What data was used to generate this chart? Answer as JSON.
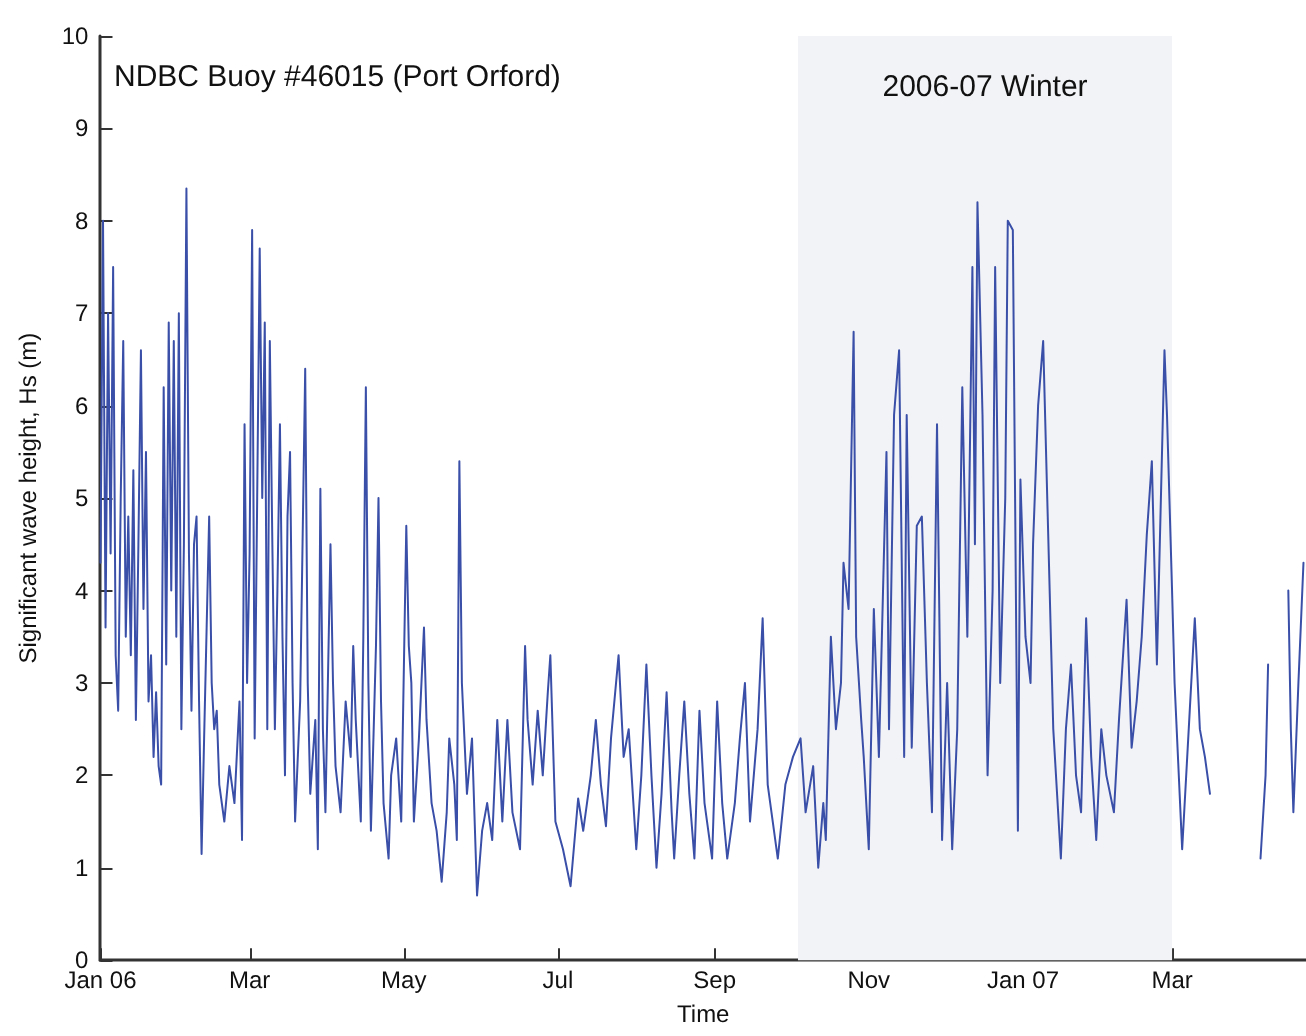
{
  "chart_data": {
    "type": "line",
    "title": "NDBC Buoy #46015 (Port Orford)",
    "xlabel": "Time",
    "ylabel": "Significant wave height, Hs (m)",
    "x": [
      "2006-01-01",
      "2006-01-02",
      "2006-01-03",
      "2006-01-04",
      "2006-01-05",
      "2006-01-06",
      "2006-01-07",
      "2006-01-08",
      "2006-01-09",
      "2006-01-10",
      "2006-01-11",
      "2006-01-12",
      "2006-01-13",
      "2006-01-14",
      "2006-01-15",
      "2006-01-16",
      "2006-01-17",
      "2006-01-18",
      "2006-01-19",
      "2006-01-20",
      "2006-01-21",
      "2006-01-22",
      "2006-01-23",
      "2006-01-24",
      "2006-01-25",
      "2006-01-26",
      "2006-01-27",
      "2006-01-28",
      "2006-01-29",
      "2006-01-30",
      "2006-01-31",
      "2006-02-01",
      "2006-02-02",
      "2006-02-03",
      "2006-02-04",
      "2006-02-05",
      "2006-02-06",
      "2006-02-07",
      "2006-02-08",
      "2006-02-09",
      "2006-02-10",
      "2006-02-11",
      "2006-02-12",
      "2006-02-13",
      "2006-02-14",
      "2006-02-15",
      "2006-02-16",
      "2006-02-17",
      "2006-02-19",
      "2006-02-21",
      "2006-02-23",
      "2006-02-25",
      "2006-02-26",
      "2006-02-27",
      "2006-02-28",
      "2006-03-01",
      "2006-03-02",
      "2006-03-03",
      "2006-03-04",
      "2006-03-05",
      "2006-03-06",
      "2006-03-07",
      "2006-03-08",
      "2006-03-09",
      "2006-03-10",
      "2006-03-11",
      "2006-03-12",
      "2006-03-13",
      "2006-03-14",
      "2006-03-15",
      "2006-03-16",
      "2006-03-17",
      "2006-03-18",
      "2006-03-19",
      "2006-03-21",
      "2006-03-23",
      "2006-03-24",
      "2006-03-25",
      "2006-03-27",
      "2006-03-28",
      "2006-03-29",
      "2006-03-30",
      "2006-03-31",
      "2006-04-02",
      "2006-04-03",
      "2006-04-04",
      "2006-04-06",
      "2006-04-08",
      "2006-04-10",
      "2006-04-11",
      "2006-04-12",
      "2006-04-14",
      "2006-04-15",
      "2006-04-16",
      "2006-04-17",
      "2006-04-18",
      "2006-04-20",
      "2006-04-21",
      "2006-04-22",
      "2006-04-23",
      "2006-04-25",
      "2006-04-26",
      "2006-04-28",
      "2006-04-30",
      "2006-05-02",
      "2006-05-03",
      "2006-05-04",
      "2006-05-05",
      "2006-05-07",
      "2006-05-09",
      "2006-05-10",
      "2006-05-12",
      "2006-05-14",
      "2006-05-16",
      "2006-05-18",
      "2006-05-19",
      "2006-05-21",
      "2006-05-22",
      "2006-05-23",
      "2006-05-24",
      "2006-05-26",
      "2006-05-28",
      "2006-05-30",
      "2006-06-01",
      "2006-06-03",
      "2006-06-05",
      "2006-06-07",
      "2006-06-09",
      "2006-06-11",
      "2006-06-13",
      "2006-06-16",
      "2006-06-18",
      "2006-06-19",
      "2006-06-21",
      "2006-06-23",
      "2006-06-25",
      "2006-06-27",
      "2006-06-28",
      "2006-06-30",
      "2006-07-03",
      "2006-07-06",
      "2006-07-09",
      "2006-07-11",
      "2006-07-14",
      "2006-07-16",
      "2006-07-18",
      "2006-07-20",
      "2006-07-22",
      "2006-07-25",
      "2006-07-27",
      "2006-07-29",
      "2006-08-01",
      "2006-08-03",
      "2006-08-05",
      "2006-08-07",
      "2006-08-09",
      "2006-08-11",
      "2006-08-13",
      "2006-08-15",
      "2006-08-16",
      "2006-08-18",
      "2006-08-20",
      "2006-08-22",
      "2006-08-24",
      "2006-08-26",
      "2006-08-28",
      "2006-08-31",
      "2006-09-02",
      "2006-09-04",
      "2006-09-06",
      "2006-09-09",
      "2006-09-11",
      "2006-09-13",
      "2006-09-15",
      "2006-09-18",
      "2006-09-20",
      "2006-09-22",
      "2006-09-24",
      "2006-09-26",
      "2006-09-29",
      "2006-10-02",
      "2006-10-05",
      "2006-10-07",
      "2006-10-10",
      "2006-10-12",
      "2006-10-14",
      "2006-10-15",
      "2006-10-17",
      "2006-10-19",
      "2006-10-21",
      "2006-10-22",
      "2006-10-24",
      "2006-10-26",
      "2006-10-27",
      "2006-10-29",
      "2006-10-30",
      "2006-11-01",
      "2006-11-03",
      "2006-11-05",
      "2006-11-08",
      "2006-11-09",
      "2006-11-11",
      "2006-11-13",
      "2006-11-15",
      "2006-11-16",
      "2006-11-18",
      "2006-11-20",
      "2006-11-22",
      "2006-11-24",
      "2006-11-26",
      "2006-11-28",
      "2006-11-30",
      "2006-12-02",
      "2006-12-04",
      "2006-12-06",
      "2006-12-08",
      "2006-12-10",
      "2006-12-12",
      "2006-12-13",
      "2006-12-14",
      "2006-12-16",
      "2006-12-18",
      "2006-12-20",
      "2006-12-21",
      "2006-12-23",
      "2006-12-25",
      "2006-12-26",
      "2006-12-28",
      "2006-12-30",
      "2006-12-31",
      "2007-01-02",
      "2007-01-04",
      "2007-01-05",
      "2007-01-07",
      "2007-01-09",
      "2007-01-11",
      "2007-01-13",
      "2007-01-16",
      "2007-01-18",
      "2007-01-20",
      "2007-01-22",
      "2007-01-24",
      "2007-01-26",
      "2007-01-28",
      "2007-01-30",
      "2007-02-01",
      "2007-02-03",
      "2007-02-06",
      "2007-02-08",
      "2007-02-11",
      "2007-02-13",
      "2007-02-15",
      "2007-02-17",
      "2007-02-19",
      "2007-02-21",
      "2007-02-23",
      "2007-02-26",
      "2007-02-27",
      "2007-03-01",
      "2007-03-02",
      "2007-03-04",
      "2007-03-05",
      "2007-03-07",
      "2007-03-08",
      "2007-03-10",
      "2007-03-12",
      "2007-03-14",
      "2007-03-16",
      "2007-03-17",
      "2007-04-05",
      "2007-04-07",
      "2007-04-08",
      "2007-04-09",
      "2007-04-16",
      "2007-04-17",
      "2007-04-18",
      "2007-04-20",
      "2007-04-22"
    ],
    "series": [
      {
        "color": "#3a4fa8",
        "values": [
          4.3,
          8.0,
          3.6,
          7.0,
          4.4,
          7.5,
          3.3,
          2.7,
          5.0,
          6.7,
          3.5,
          4.8,
          3.3,
          5.3,
          2.6,
          4.5,
          6.6,
          3.8,
          5.5,
          2.8,
          3.3,
          2.2,
          2.9,
          2.1,
          1.9,
          6.2,
          3.2,
          6.9,
          4.0,
          6.7,
          3.5,
          7.0,
          2.5,
          4.5,
          8.35,
          4.4,
          2.7,
          4.5,
          4.8,
          2.8,
          1.15,
          2.4,
          3.6,
          4.8,
          3.0,
          2.5,
          2.7,
          1.9,
          1.5,
          2.1,
          1.7,
          2.8,
          1.3,
          5.8,
          3.0,
          4.4,
          7.9,
          2.4,
          5.0,
          7.7,
          5.0,
          6.9,
          2.5,
          6.7,
          4.5,
          2.5,
          4.0,
          5.8,
          3.5,
          2.0,
          4.8,
          5.5,
          3.0,
          1.5,
          2.8,
          6.4,
          3.0,
          1.8,
          2.6,
          1.2,
          5.1,
          2.5,
          1.6,
          4.5,
          3.0,
          2.1,
          1.6,
          2.8,
          2.2,
          3.4,
          2.6,
          1.5,
          3.5,
          6.2,
          3.0,
          1.4,
          3.4,
          5.0,
          2.8,
          1.7,
          1.1,
          2.0,
          2.4,
          1.5,
          4.7,
          3.4,
          3.0,
          1.5,
          2.4,
          3.6,
          2.6,
          1.7,
          1.4,
          0.85,
          1.6,
          2.4,
          1.9,
          1.3,
          5.4,
          3.0,
          1.8,
          2.4,
          0.7,
          1.4,
          1.7,
          1.3,
          2.6,
          1.5,
          2.6,
          1.6,
          1.2,
          3.4,
          2.6,
          1.9,
          2.7,
          2.0,
          2.9,
          3.3,
          1.5,
          1.2,
          0.8,
          1.75,
          1.4,
          2.0,
          2.6,
          1.9,
          1.45,
          2.4,
          3.3,
          2.2,
          2.5,
          1.2,
          2.0,
          3.2,
          2.0,
          1.0,
          1.8,
          2.9,
          1.6,
          1.1,
          2.0,
          2.8,
          1.8,
          1.1,
          2.7,
          1.7,
          1.1,
          2.8,
          1.7,
          1.1,
          1.7,
          2.4,
          3.0,
          1.5,
          2.5,
          3.7,
          1.9,
          1.5,
          1.1,
          1.9,
          2.2,
          2.4,
          1.6,
          2.1,
          1.0,
          1.7,
          1.3,
          3.5,
          2.5,
          3.0,
          4.3,
          3.8,
          6.8,
          3.5,
          2.6,
          2.2,
          1.2,
          3.8,
          2.2,
          5.5,
          2.5,
          5.9,
          6.6,
          2.2,
          5.9,
          2.3,
          4.7,
          4.8,
          3.0,
          1.6,
          5.8,
          1.3,
          3.0,
          1.2,
          2.5,
          6.2,
          3.5,
          7.5,
          4.5,
          8.2,
          5.9,
          2.0,
          4.0,
          7.5,
          3.0,
          5.0,
          8.0,
          7.9,
          1.4,
          5.2,
          3.5,
          3.0,
          4.5,
          6.0,
          6.7,
          4.6,
          2.5,
          1.1,
          2.5,
          3.2,
          2.0,
          1.6,
          3.7,
          2.2,
          1.3,
          2.5,
          2.0,
          1.6,
          2.6,
          3.9,
          2.3,
          2.8,
          3.5,
          4.6,
          5.4,
          3.2,
          6.6,
          5.9,
          4.0,
          3.0,
          1.8,
          1.2,
          2.2,
          2.7,
          3.7,
          2.5,
          2.2,
          1.8,
          null,
          1.1,
          2.0,
          3.2,
          null,
          4.0,
          2.5,
          1.6,
          3.0,
          4.3
        ]
      }
    ],
    "xlim": [
      "2006-01-01",
      "2007-04-23"
    ],
    "xticks": [
      {
        "value": "2006-01-01",
        "label": "Jan 06"
      },
      {
        "value": "2006-03-01",
        "label": "Mar"
      },
      {
        "value": "2006-05-01",
        "label": "May"
      },
      {
        "value": "2006-07-01",
        "label": "Jul"
      },
      {
        "value": "2006-09-01",
        "label": "Sep"
      },
      {
        "value": "2006-11-01",
        "label": "Nov"
      },
      {
        "value": "2007-01-01",
        "label": "Jan 07"
      },
      {
        "value": "2007-03-01",
        "label": "Mar"
      }
    ],
    "ylim": [
      0,
      10
    ],
    "yticks": [
      0,
      1,
      2,
      3,
      4,
      5,
      6,
      7,
      8,
      9,
      10
    ],
    "bands": [
      {
        "axis": "x",
        "from": "2006-10-04",
        "to": "2007-03-01",
        "label": "2006-07 Winter",
        "color": "#f2f3f6"
      }
    ],
    "grid": false,
    "marker": "none",
    "line_style": "solid"
  }
}
